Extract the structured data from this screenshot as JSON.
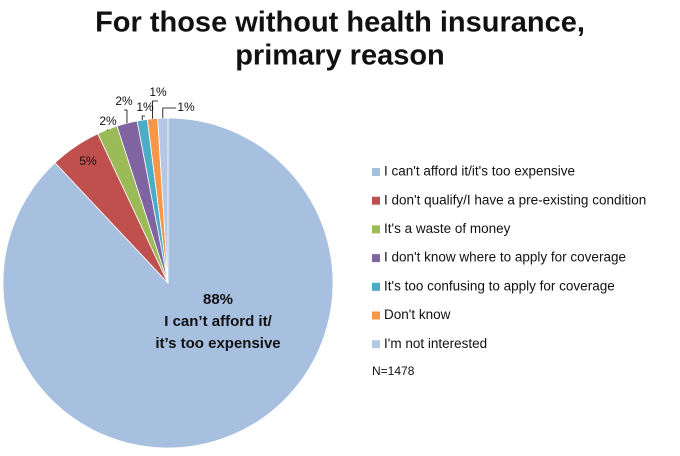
{
  "chart_data": {
    "type": "pie",
    "title": [
      "For those without health insurance,",
      "primary reason"
    ],
    "categories": [
      "I can't afford it/it's too expensive",
      "I don't qualify/I have a pre-existing condition",
      "It's a waste of money",
      "I don't know where to apply for coverage",
      "It's too confusing to apply for coverage",
      "Don't know",
      "I'm not interested"
    ],
    "values": [
      88,
      5,
      2,
      2,
      1,
      1,
      1
    ],
    "value_labels": [
      "88%",
      "5%",
      "2%",
      "2%",
      "1%",
      "1%",
      "1%"
    ],
    "colors": [
      "#a7c0e0",
      "#c0504d",
      "#9bbb59",
      "#8064a2",
      "#4bacc6",
      "#f79646",
      "#b4c8e6"
    ],
    "slice_annotation": [
      "I can’t afford it/",
      "it’s too expensive"
    ],
    "note": "N=1478",
    "legend": "right"
  }
}
